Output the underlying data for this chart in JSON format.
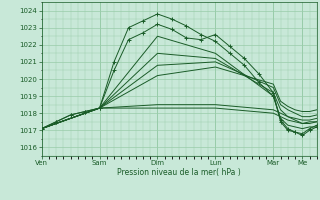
{
  "bg_color": "#c8e8d8",
  "grid_color": "#99ccaa",
  "line_color": "#1a5c28",
  "marker_color": "#1a5c28",
  "xlabel": "Pression niveau de la mer( hPa )",
  "xlabel_color": "#1a5c28",
  "ylim": [
    1015.5,
    1024.5
  ],
  "yticks": [
    1016,
    1017,
    1018,
    1019,
    1020,
    1021,
    1022,
    1023,
    1024
  ],
  "day_labels": [
    "Ven",
    "Sam",
    "Dim",
    "Lun",
    "Mar",
    "Me"
  ],
  "day_positions": [
    0,
    24,
    48,
    72,
    96,
    108
  ],
  "xlim": [
    0,
    114
  ],
  "series": [
    {
      "x": [
        0,
        6,
        12,
        18,
        24,
        30,
        36,
        42,
        48,
        54,
        60,
        66,
        72,
        78,
        84,
        90,
        96,
        99,
        102,
        105,
        108,
        111,
        114
      ],
      "y": [
        1017.1,
        1017.5,
        1017.9,
        1018.1,
        1018.3,
        1021.0,
        1023.0,
        1023.4,
        1023.8,
        1023.5,
        1023.1,
        1022.6,
        1022.2,
        1021.5,
        1020.8,
        1019.8,
        1019.0,
        1017.6,
        1017.1,
        1016.9,
        1016.7,
        1017.0,
        1017.2
      ],
      "marker": true
    },
    {
      "x": [
        0,
        6,
        12,
        18,
        24,
        30,
        36,
        42,
        48,
        54,
        60,
        66,
        72,
        78,
        84,
        90,
        96,
        99,
        102,
        105,
        108,
        111,
        114
      ],
      "y": [
        1017.1,
        1017.5,
        1017.9,
        1018.1,
        1018.3,
        1020.5,
        1022.3,
        1022.7,
        1023.2,
        1022.9,
        1022.4,
        1022.3,
        1022.6,
        1021.9,
        1021.2,
        1020.3,
        1019.2,
        1017.5,
        1017.0,
        1016.9,
        1016.8,
        1017.1,
        1017.3
      ],
      "marker": true
    },
    {
      "x": [
        0,
        24,
        48,
        72,
        96,
        99,
        102,
        105,
        108,
        111,
        114
      ],
      "y": [
        1017.1,
        1018.3,
        1022.5,
        1021.5,
        1019.0,
        1017.7,
        1017.3,
        1017.2,
        1017.1,
        1017.2,
        1017.2
      ],
      "marker": false
    },
    {
      "x": [
        0,
        24,
        48,
        72,
        96,
        99,
        102,
        105,
        108,
        111,
        114
      ],
      "y": [
        1017.1,
        1018.3,
        1021.5,
        1021.2,
        1019.2,
        1018.2,
        1017.8,
        1017.6,
        1017.4,
        1017.5,
        1017.5
      ],
      "marker": false
    },
    {
      "x": [
        0,
        24,
        48,
        72,
        96,
        99,
        102,
        105,
        108,
        111,
        114
      ],
      "y": [
        1017.1,
        1018.3,
        1020.8,
        1021.0,
        1019.5,
        1018.5,
        1018.2,
        1018.0,
        1017.8,
        1017.8,
        1017.9
      ],
      "marker": false
    },
    {
      "x": [
        0,
        24,
        48,
        72,
        96,
        99,
        102,
        105,
        108,
        111,
        114
      ],
      "y": [
        1017.1,
        1018.3,
        1020.2,
        1020.7,
        1019.7,
        1018.7,
        1018.4,
        1018.2,
        1018.1,
        1018.1,
        1018.2
      ],
      "marker": false
    },
    {
      "x": [
        0,
        24,
        48,
        72,
        96,
        99,
        102,
        105,
        108,
        111,
        114
      ],
      "y": [
        1017.1,
        1018.3,
        1018.5,
        1018.5,
        1018.2,
        1018.0,
        1017.8,
        1017.7,
        1017.6,
        1017.6,
        1017.7
      ],
      "marker": false
    },
    {
      "x": [
        0,
        24,
        48,
        72,
        96,
        99,
        102,
        105,
        108,
        111,
        114
      ],
      "y": [
        1017.1,
        1018.3,
        1018.3,
        1018.3,
        1018.0,
        1017.8,
        1017.6,
        1017.5,
        1017.4,
        1017.4,
        1017.5
      ],
      "marker": false
    }
  ]
}
